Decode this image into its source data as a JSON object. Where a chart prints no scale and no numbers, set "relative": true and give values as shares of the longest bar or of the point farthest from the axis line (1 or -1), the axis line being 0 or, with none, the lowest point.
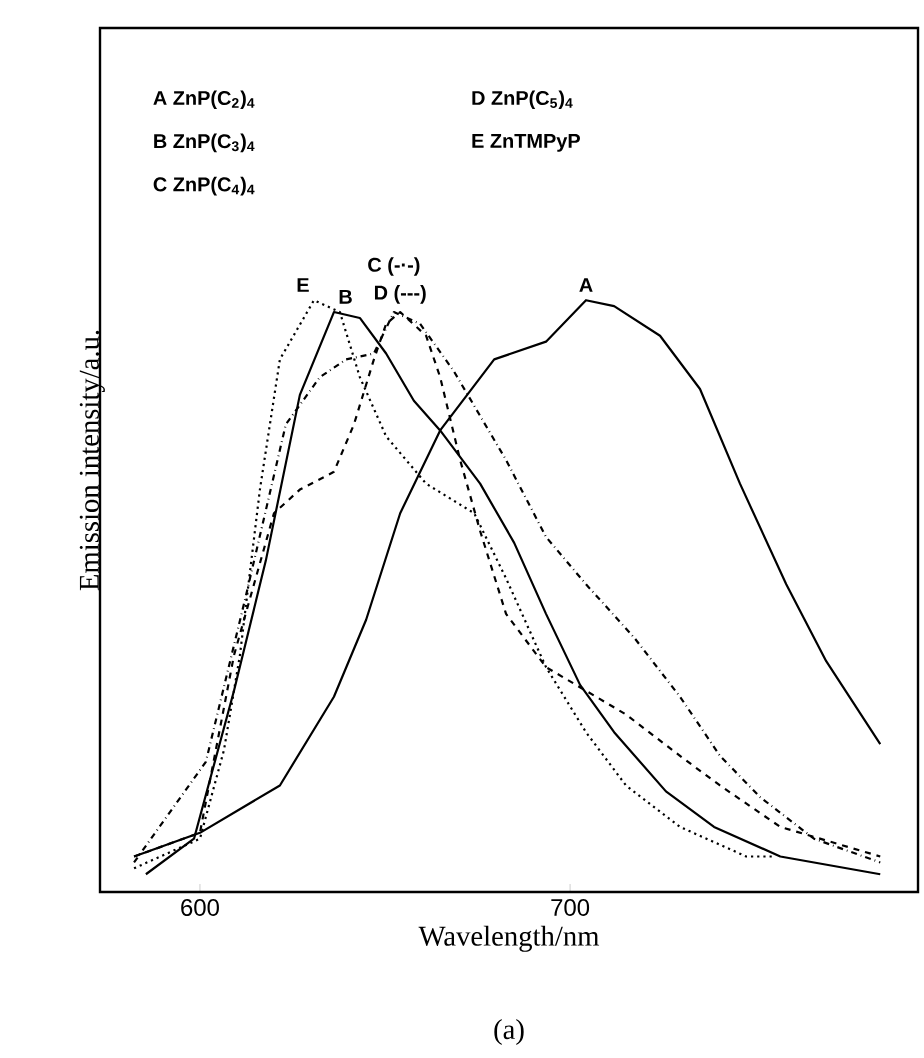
{
  "chart_data": {
    "type": "line",
    "relative": true,
    "xlabel": "Wavelength/nm",
    "ylabel": "Emission intensity/a.u.",
    "xlim": [
      573,
      794
    ],
    "xticks": [
      600,
      700
    ],
    "annotations": [
      "A ZnP(C$_{2}$)$_{4}$",
      "B ZnP(C$_{3}$)$_{4}$",
      "C ZnP(C$_{4}$)$_{4}$",
      "D ZnP(C$_{5}$)$_{4}$",
      "E ZnTMPyP",
      "(a)"
    ],
    "series": [
      {
        "name": "A",
        "color": "#000000",
        "line_style": "solid",
        "x": [
          582.2,
          600,
          621.6,
          636.2,
          644.9,
          654.1,
          664.9,
          679.5,
          693.5,
          704.3,
          711.9,
          724.3,
          735.1,
          745.9,
          758.4,
          769.2,
          783.8
        ],
        "values": [
          0.06,
          0.1,
          0.18,
          0.33,
          0.46,
          0.64,
          0.78,
          0.9,
          0.93,
          1.0,
          0.99,
          0.94,
          0.85,
          0.69,
          0.52,
          0.39,
          0.25
        ]
      },
      {
        "name": "B",
        "color": "#000000",
        "line_style": "solid",
        "x": [
          585.4,
          598.4,
          609.2,
          617.8,
          627,
          636.2,
          643.2,
          650.3,
          657.8,
          664.9,
          675.7,
          684.9,
          693.5,
          702.7,
          711.9,
          725.9,
          738.9,
          756.8,
          783.8
        ],
        "values": [
          0.03,
          0.09,
          0.34,
          0.56,
          0.84,
          0.98,
          0.97,
          0.91,
          0.83,
          0.78,
          0.69,
          0.59,
          0.47,
          0.35,
          0.27,
          0.17,
          0.11,
          0.06,
          0.03
        ]
      },
      {
        "name": "C (-·-)",
        "color": "#000000",
        "line_style": "dashdot",
        "x": [
          582.2,
          601.6,
          612.4,
          623.2,
          632.4,
          639.5,
          647,
          652.4,
          659.5,
          668.6,
          682.7,
          693.5,
          704.3,
          717.3,
          729.7,
          740.5,
          751.4,
          765.9,
          783.8
        ],
        "values": [
          0.05,
          0.22,
          0.5,
          0.79,
          0.87,
          0.9,
          0.91,
          0.98,
          0.96,
          0.88,
          0.73,
          0.6,
          0.52,
          0.43,
          0.33,
          0.23,
          0.16,
          0.09,
          0.05
        ]
      },
      {
        "name": "D (---)",
        "color": "#000000",
        "line_style": "dashed",
        "x": [
          582.2,
          600,
          609.2,
          620,
          627,
          636.2,
          641.6,
          647,
          650.3,
          654.1,
          661.1,
          664.9,
          670.3,
          675.7,
          682.7,
          693.5,
          704.3,
          715.1,
          729.7,
          740.5,
          756.8,
          783.8
        ],
        "values": [
          0.06,
          0.1,
          0.4,
          0.64,
          0.68,
          0.71,
          0.79,
          0.9,
          0.96,
          0.98,
          0.94,
          0.87,
          0.73,
          0.61,
          0.47,
          0.38,
          0.34,
          0.3,
          0.23,
          0.18,
          0.11,
          0.06
        ]
      },
      {
        "name": "E",
        "color": "#000000",
        "line_style": "dotted",
        "x": [
          582.2,
          600,
          606.5,
          610.8,
          616.2,
          621.6,
          630.8,
          637.8,
          643.2,
          650.3,
          661.1,
          674.1,
          682.7,
          693.5,
          704.3,
          715.1,
          729.7,
          747.6,
          755.1
        ],
        "values": [
          0.04,
          0.09,
          0.24,
          0.4,
          0.68,
          0.9,
          1.0,
          0.98,
          0.87,
          0.77,
          0.69,
          0.64,
          0.53,
          0.38,
          0.27,
          0.18,
          0.11,
          0.06,
          0.06
        ]
      }
    ]
  }
}
